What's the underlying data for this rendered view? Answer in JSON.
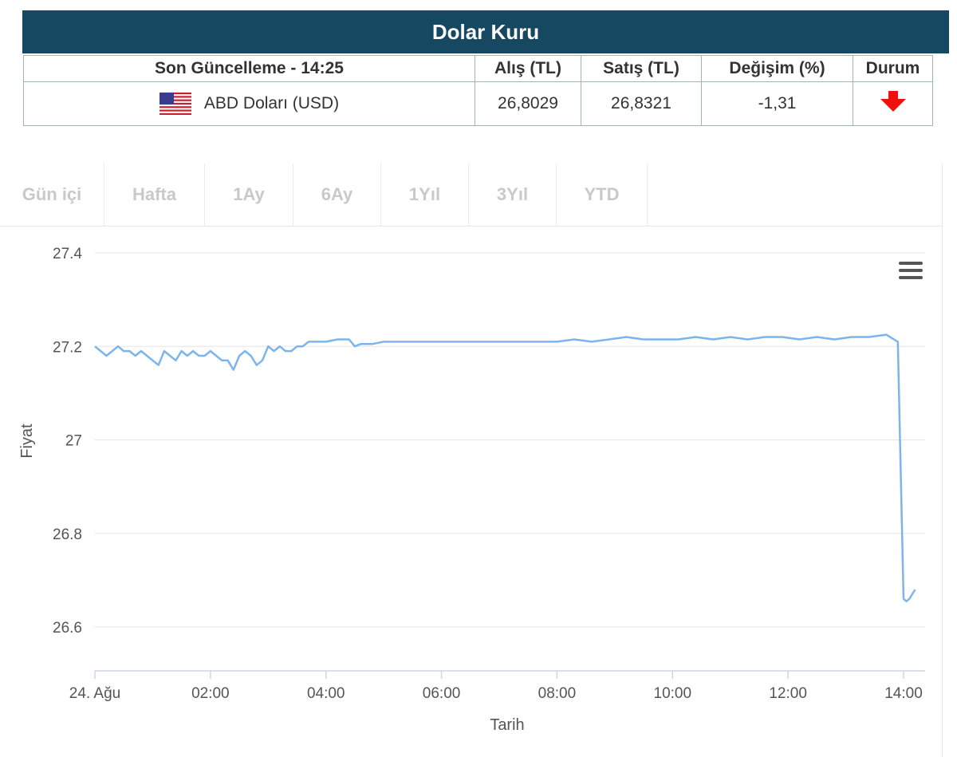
{
  "header": {
    "title": "Dolar Kuru"
  },
  "table": {
    "headers": [
      "Son Güncelleme - 14:25",
      "Alış (TL)",
      "Satış (TL)",
      "Değişim (%)",
      "Durum"
    ],
    "row": {
      "currency": "ABD Doları (USD)",
      "buy": "26,8029",
      "sell": "26,8321",
      "change": "-1,31",
      "status_icon": "arrow-down-icon",
      "status_color": "#ee1111"
    }
  },
  "tabs": [
    "Gün içi",
    "Hafta",
    "1Ay",
    "6Ay",
    "1Yıl",
    "3Yıl",
    "YTD"
  ],
  "chart_data": {
    "type": "line",
    "xlabel": "Tarih",
    "ylabel": "Fiyat",
    "x_ticks": [
      "24. Ağu",
      "02:00",
      "04:00",
      "06:00",
      "08:00",
      "10:00",
      "12:00",
      "14:00"
    ],
    "y_ticks": [
      "27.4",
      "27.2",
      "27",
      "26.8",
      "26.6"
    ],
    "ylim": [
      26.52,
      27.4
    ],
    "xlim_hours": [
      0,
      14.3
    ],
    "grid": true,
    "line_color": "#7cb5ec",
    "series": [
      {
        "x": [
          0,
          0.1,
          0.2,
          0.3,
          0.4,
          0.5,
          0.6,
          0.7,
          0.8,
          0.9,
          1.0,
          1.1,
          1.2,
          1.3,
          1.4,
          1.5,
          1.6,
          1.7,
          1.8,
          1.9,
          2.0,
          2.1,
          2.2,
          2.3,
          2.4,
          2.5,
          2.6,
          2.7,
          2.8,
          2.9,
          3.0,
          3.1,
          3.2,
          3.3,
          3.4,
          3.5,
          3.6,
          3.7,
          3.8,
          4.0,
          4.2,
          4.4,
          4.5,
          4.6,
          4.8,
          5.0,
          5.3,
          5.6,
          5.9,
          6.2,
          6.5,
          6.8,
          7.1,
          7.4,
          7.7,
          8.0,
          8.3,
          8.6,
          8.9,
          9.2,
          9.5,
          9.8,
          10.1,
          10.4,
          10.7,
          11.0,
          11.3,
          11.6,
          11.9,
          12.2,
          12.5,
          12.8,
          13.1,
          13.4,
          13.7,
          13.9,
          14.0,
          14.05,
          14.1,
          14.2
        ],
        "y": [
          27.2,
          27.19,
          27.18,
          27.19,
          27.2,
          27.19,
          27.19,
          27.18,
          27.19,
          27.18,
          27.17,
          27.16,
          27.19,
          27.18,
          27.17,
          27.19,
          27.18,
          27.19,
          27.18,
          27.18,
          27.19,
          27.18,
          27.17,
          27.17,
          27.15,
          27.18,
          27.19,
          27.18,
          27.16,
          27.17,
          27.2,
          27.19,
          27.2,
          27.19,
          27.19,
          27.2,
          27.2,
          27.21,
          27.21,
          27.21,
          27.215,
          27.215,
          27.2,
          27.205,
          27.205,
          27.21,
          27.21,
          27.21,
          27.21,
          27.21,
          27.21,
          27.21,
          27.21,
          27.21,
          27.21,
          27.21,
          27.215,
          27.21,
          27.215,
          27.22,
          27.215,
          27.215,
          27.215,
          27.22,
          27.215,
          27.22,
          27.215,
          27.22,
          27.22,
          27.215,
          27.22,
          27.215,
          27.22,
          27.22,
          27.225,
          27.21,
          26.66,
          26.655,
          26.66,
          26.68
        ]
      }
    ]
  }
}
